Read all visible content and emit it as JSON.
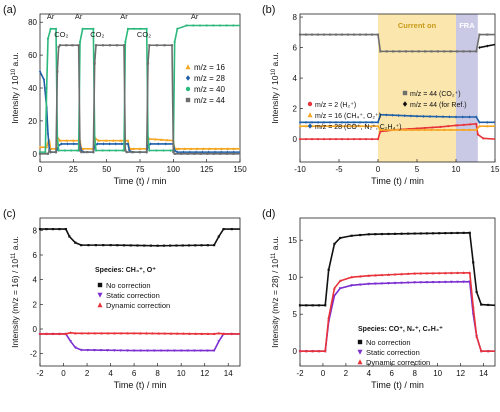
{
  "chart_data": [
    {
      "id": "a",
      "panel_label": "(a)",
      "type": "line",
      "xlabel": "Time (t) / min",
      "ylabel": "Intensity / 10",
      "ylabel_sup": "10",
      "ylabel_tail": " a.u.",
      "xlim": [
        0,
        150
      ],
      "ylim": [
        -5,
        85
      ],
      "xticks": [
        0,
        25,
        50,
        75,
        100,
        125,
        150
      ],
      "yticks": [
        0,
        20,
        40,
        60,
        80
      ],
      "grid": false,
      "legend_position": "right",
      "annotations": [
        {
          "text": "Ar",
          "x": 8,
          "y": 82
        },
        {
          "text": "CO₂",
          "x": 16,
          "y": 71
        },
        {
          "text": "Ar",
          "x": 29,
          "y": 82
        },
        {
          "text": "CO₂",
          "x": 43,
          "y": 71
        },
        {
          "text": "Ar",
          "x": 63,
          "y": 82
        },
        {
          "text": "CO₂",
          "x": 78,
          "y": 71
        },
        {
          "text": "Ar",
          "x": 116,
          "y": 82
        }
      ],
      "series": [
        {
          "name": "m/z = 16",
          "color": "#f5a623",
          "marker": "triangle",
          "x": [
            0,
            5,
            6,
            7,
            8,
            12,
            13,
            14,
            15,
            30,
            31,
            32,
            40,
            41,
            42,
            44,
            66,
            67,
            68,
            70,
            80,
            81,
            82,
            100,
            101,
            102,
            104,
            150
          ],
          "y": [
            4,
            4,
            7,
            8,
            3,
            3,
            8,
            9,
            8,
            8,
            3,
            3,
            3,
            8,
            9,
            8,
            8,
            3,
            3,
            3,
            3,
            8,
            9,
            8,
            3,
            3,
            3,
            3
          ]
        },
        {
          "name": "m/z = 28",
          "color": "#1f5fa8",
          "marker": "diamond",
          "x": [
            0,
            3,
            5,
            6,
            7,
            8,
            12,
            14,
            16,
            30,
            31,
            33,
            40,
            41,
            43,
            66,
            67,
            69,
            80,
            81,
            83,
            100,
            101,
            103,
            150
          ],
          "y": [
            50,
            45,
            28,
            12,
            3,
            1,
            1,
            5,
            6,
            6,
            2,
            1,
            1,
            5,
            6,
            6,
            2,
            1,
            1,
            5,
            6,
            6,
            2,
            1,
            1
          ]
        },
        {
          "name": "m/z = 40",
          "color": "#2db87d",
          "marker": "circle",
          "x": [
            0,
            4,
            5,
            6,
            8,
            12,
            13,
            14,
            28,
            29,
            30,
            32,
            40,
            41,
            42,
            62,
            63,
            64,
            66,
            80,
            81,
            82,
            98,
            100,
            101,
            103,
            110,
            150
          ],
          "y": [
            1,
            1,
            40,
            70,
            76,
            76,
            10,
            2,
            2,
            2,
            68,
            76,
            76,
            10,
            2,
            2,
            2,
            68,
            76,
            76,
            10,
            2,
            2,
            2,
            68,
            76,
            78,
            78
          ]
        },
        {
          "name": "m/z = 44",
          "color": "#6e6e6e",
          "marker": "square",
          "x": [
            0,
            6,
            7,
            8,
            12,
            13,
            14,
            15,
            29,
            30,
            31,
            40,
            41,
            42,
            63,
            64,
            65,
            80,
            81,
            82,
            99,
            100,
            101,
            150
          ],
          "y": [
            0,
            0,
            2,
            1,
            1,
            50,
            65,
            66,
            66,
            2,
            1,
            1,
            55,
            66,
            66,
            2,
            1,
            1,
            55,
            66,
            66,
            1,
            0,
            0
          ]
        }
      ]
    },
    {
      "id": "b",
      "panel_label": "(b)",
      "type": "line",
      "xlabel": "Time (t) / min",
      "ylabel": "Intensity / 10",
      "ylabel_sup": "10",
      "ylabel_tail": " a.u.",
      "xlim": [
        -10,
        15
      ],
      "ylim": [
        -1.5,
        8.2
      ],
      "xticks": [
        -10,
        -5,
        0,
        5,
        10,
        15
      ],
      "yticks": [
        0,
        2,
        4,
        6,
        8
      ],
      "grid": false,
      "bands": [
        {
          "label": "Current on",
          "x": [
            0,
            10
          ],
          "color": "#fbe7ae",
          "label_color": "#c99a1a"
        },
        {
          "label": "FRA",
          "x": [
            10,
            12.8
          ],
          "color": "#c9c9e6",
          "label_color": "#ffffff"
        }
      ],
      "legend_position": "bottom",
      "series": [
        {
          "name": "m/z = 2 (H₂⁺)",
          "color": "#e8323a",
          "marker": "circle",
          "x": [
            -10,
            0,
            0.3,
            2,
            5,
            8,
            10,
            10.2,
            12.6,
            12.8,
            13.5,
            15
          ],
          "y": [
            0,
            0,
            0.5,
            0.6,
            0.7,
            0.8,
            0.9,
            0.9,
            1.0,
            0.3,
            0.05,
            0
          ]
        },
        {
          "name": "m/z = 16 (CH₄⁺, O₂⁺)",
          "color": "#f5a623",
          "marker": "triangle",
          "x": [
            -10,
            0,
            0.3,
            12.6,
            13,
            15
          ],
          "y": [
            0.85,
            0.85,
            0.6,
            0.6,
            0.85,
            0.85
          ]
        },
        {
          "name": "m/z = 28 (CO⁺, N₂⁺, C₂H₄⁺)",
          "color": "#1f5fa8",
          "marker": "diamond",
          "x": [
            -10,
            0,
            0.3,
            5,
            10,
            12.6,
            13,
            15
          ],
          "y": [
            1.1,
            1.1,
            1.6,
            1.5,
            1.45,
            1.45,
            1.1,
            1.1
          ]
        },
        {
          "name": "m/z = 44 (CO₂⁺)",
          "color": "#6e6e6e",
          "marker": "square",
          "x": [
            -10,
            0,
            0.3,
            12.6,
            13,
            15
          ],
          "y": [
            6.85,
            6.85,
            5.75,
            5.75,
            6.85,
            6.85
          ]
        },
        {
          "name": "m/z = 44 (for Ref.)",
          "color": "#111111",
          "marker": "diamond",
          "x": [
            13,
            15
          ],
          "y": [
            6.0,
            6.2
          ]
        }
      ]
    },
    {
      "id": "c",
      "panel_label": "(c)",
      "type": "line",
      "xlabel": "Time (t) / min",
      "ylabel": "Intensity (m/z = 16) / 10",
      "ylabel_sup": "11",
      "ylabel_tail": " a.u.",
      "xlim": [
        -2,
        15
      ],
      "ylim": [
        -3,
        9
      ],
      "xticks": [
        -2,
        0,
        2,
        4,
        6,
        8,
        10,
        12,
        14
      ],
      "yticks": [
        -2,
        0,
        2,
        4,
        6,
        8
      ],
      "grid": false,
      "species_label": "Species: CH₄⁺, O⁺",
      "legend_position": "center-left",
      "series": [
        {
          "name": "No correction",
          "color": "#111111",
          "marker": "square",
          "x": [
            -2,
            0.2,
            0.5,
            1,
            1.5,
            4,
            8,
            12.8,
            13.2,
            13.6,
            15
          ],
          "y": [
            8.1,
            8.1,
            7.5,
            7,
            6.8,
            6.8,
            6.75,
            6.8,
            7.5,
            8.1,
            8.1
          ]
        },
        {
          "name": "Static correction",
          "color": "#7b2fd0",
          "marker": "triangle-down",
          "x": [
            -2,
            0.2,
            0.6,
            1,
            1.5,
            6,
            10,
            12.8,
            13.2,
            13.6,
            15
          ],
          "y": [
            -0.4,
            -0.4,
            -1.0,
            -1.5,
            -1.7,
            -1.75,
            -1.75,
            -1.75,
            -1.0,
            -0.4,
            -0.4
          ]
        },
        {
          "name": "Dynamic correction",
          "color": "#e8323a",
          "marker": "triangle",
          "x": [
            -2,
            0.2,
            0.6,
            1,
            6,
            12.8,
            13.2,
            13.6,
            15
          ],
          "y": [
            -0.4,
            -0.4,
            -0.3,
            -0.35,
            -0.35,
            -0.4,
            -0.35,
            -0.4,
            -0.4
          ]
        }
      ]
    },
    {
      "id": "d",
      "panel_label": "(d)",
      "type": "line",
      "xlabel": "Time (t) / min",
      "ylabel": "Intensity (m/z = 28) / 10",
      "ylabel_sup": "11",
      "ylabel_tail": " a.u.",
      "xlim": [
        -2,
        15
      ],
      "ylim": [
        -2,
        18
      ],
      "xticks": [
        -2,
        0,
        2,
        4,
        6,
        8,
        10,
        12,
        14
      ],
      "yticks": [
        0,
        5,
        10,
        15
      ],
      "grid": false,
      "species_label": "Species: CO⁺, N₂⁺, C₂H₄⁺",
      "legend_position": "bottom-right",
      "series": [
        {
          "name": "No correction",
          "color": "#111111",
          "marker": "square",
          "x": [
            -2,
            0.2,
            0.5,
            1,
            1.5,
            2.5,
            4,
            8,
            12.8,
            13.1,
            13.4,
            13.8,
            15
          ],
          "y": [
            6.2,
            6.2,
            11,
            14.5,
            15.3,
            15.6,
            15.8,
            15.9,
            16,
            12,
            8,
            6.3,
            6.2
          ]
        },
        {
          "name": "Static correction",
          "color": "#7b2fd0",
          "marker": "triangle-down",
          "x": [
            -2,
            0.2,
            0.5,
            1,
            1.5,
            2.5,
            4,
            8,
            12.8,
            13.1,
            13.4,
            13.8,
            15
          ],
          "y": [
            0,
            0,
            4,
            7.5,
            8.5,
            8.9,
            9.1,
            9.3,
            9.4,
            5,
            2,
            0,
            0
          ]
        },
        {
          "name": "Dynamic correction",
          "color": "#e8323a",
          "marker": "triangle",
          "x": [
            -2,
            0.2,
            0.5,
            1,
            1.5,
            2.5,
            4,
            8,
            12.8,
            13.1,
            13.4,
            13.8,
            15
          ],
          "y": [
            0,
            0,
            4.5,
            8.5,
            9.5,
            10,
            10.2,
            10.5,
            10.6,
            6,
            2,
            0,
            0
          ]
        }
      ]
    }
  ]
}
